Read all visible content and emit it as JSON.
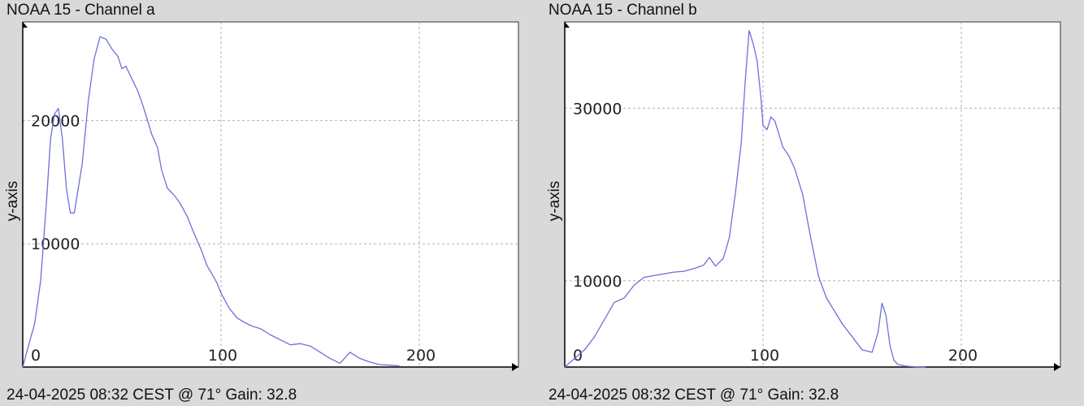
{
  "charts": [
    {
      "title": "NOAA 15 - Channel a",
      "footer": "24-04-2025 08:32 CEST @ 71° Gain: 32.8"
    },
    {
      "title": "NOAA 15 - Channel b",
      "footer": "24-04-2025 08:32 CEST @ 71° Gain: 32.8"
    }
  ],
  "colors": {
    "background": "#d9d9d9",
    "plot_area": "#ffffff",
    "line": "#6f6fd8",
    "grid": "#b0b0b0"
  },
  "chart_data": [
    {
      "type": "line",
      "title": "NOAA 15 - Channel a",
      "xlabel": "",
      "ylabel": "y-axis",
      "xlim": [
        0,
        250
      ],
      "ylim": [
        0,
        28000
      ],
      "xticks": [
        0,
        100,
        200
      ],
      "yticks": [
        10000,
        20000
      ],
      "grid": true,
      "series": [
        {
          "x": [
            0,
            3,
            6,
            9,
            12,
            14,
            16,
            18,
            20,
            22,
            24,
            26,
            28,
            30,
            33,
            36,
            39,
            42,
            45,
            48,
            50,
            52,
            55,
            58,
            60,
            62,
            65,
            68,
            70,
            73,
            76,
            78,
            80,
            83,
            86,
            90,
            93,
            96,
            98,
            100,
            104,
            108,
            112,
            116,
            120,
            125,
            130,
            135,
            140,
            145,
            150,
            155,
            160,
            165,
            170,
            175,
            180,
            185,
            190
          ],
          "y": [
            0,
            1800,
            3500,
            7000,
            13500,
            18500,
            20500,
            21000,
            18500,
            14500,
            12500,
            12500,
            14500,
            16500,
            21500,
            25000,
            26800,
            26600,
            25800,
            25200,
            24200,
            24400,
            23400,
            22400,
            21500,
            20500,
            18900,
            17800,
            16000,
            14500,
            14000,
            13600,
            13100,
            12200,
            11000,
            9500,
            8200,
            7400,
            6800,
            6000,
            4800,
            4000,
            3600,
            3300,
            3100,
            2600,
            2200,
            1800,
            1900,
            1700,
            1200,
            700,
            300,
            1200,
            700,
            400,
            200,
            150,
            100
          ]
        }
      ]
    },
    {
      "type": "line",
      "title": "NOAA 15 - Channel b",
      "xlabel": "",
      "ylabel": "y-axis",
      "xlim": [
        0,
        250
      ],
      "ylim": [
        0,
        40000
      ],
      "xticks": [
        0,
        100,
        200
      ],
      "yticks": [
        10000,
        30000
      ],
      "grid": true,
      "series": [
        {
          "x": [
            0,
            5,
            10,
            15,
            20,
            25,
            30,
            35,
            40,
            45,
            50,
            55,
            60,
            65,
            70,
            73,
            76,
            80,
            83,
            86,
            89,
            91,
            93,
            95,
            97,
            99,
            100,
            102,
            104,
            106,
            108,
            110,
            113,
            116,
            120,
            124,
            128,
            132,
            136,
            140,
            145,
            150,
            155,
            158,
            160,
            162,
            164,
            166,
            168,
            172,
            178,
            182
          ],
          "y": [
            0,
            1000,
            2000,
            3500,
            5500,
            7500,
            8000,
            9500,
            10400,
            10600,
            10800,
            11000,
            11100,
            11400,
            11800,
            12700,
            11700,
            12600,
            15000,
            20000,
            26000,
            33000,
            39000,
            37500,
            35500,
            31000,
            28000,
            27500,
            29000,
            28500,
            27000,
            25500,
            24500,
            23000,
            20000,
            15000,
            10500,
            8000,
            6500,
            5000,
            3500,
            2000,
            1700,
            4000,
            7400,
            6000,
            2500,
            800,
            300,
            100,
            0,
            0
          ]
        }
      ]
    }
  ]
}
